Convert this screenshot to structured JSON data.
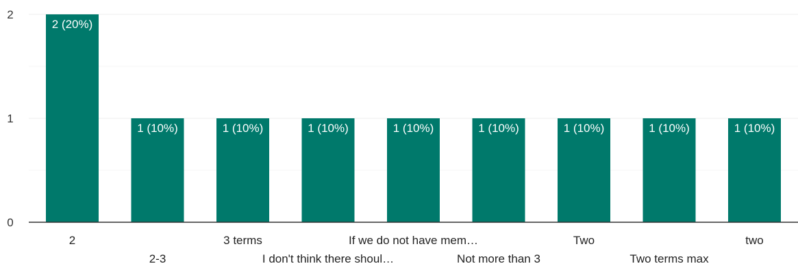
{
  "chart_data": {
    "type": "bar",
    "categories": [
      "2",
      "2-3",
      "3 terms",
      "I don't think there shoul…",
      "If we do not have mem…",
      "Not more than 3",
      "Two",
      "Two terms max",
      "two"
    ],
    "values": [
      2,
      1,
      1,
      1,
      1,
      1,
      1,
      1,
      1
    ],
    "data_labels": [
      "2 (20%)",
      "1 (10%)",
      "1 (10%)",
      "1 (10%)",
      "1 (10%)",
      "1 (10%)",
      "1 (10%)",
      "1 (10%)",
      "1 (10%)"
    ],
    "y_ticks": [
      0,
      1,
      2
    ],
    "ylim": [
      0,
      2
    ],
    "title": "",
    "xlabel": "",
    "ylabel": "",
    "grid": true,
    "bar_color": "#00796b",
    "label_color": "#ffffff",
    "gridline_color": "#ececec",
    "minor_gridline_color": "#f6f6f6",
    "axis_color": "#333333"
  }
}
